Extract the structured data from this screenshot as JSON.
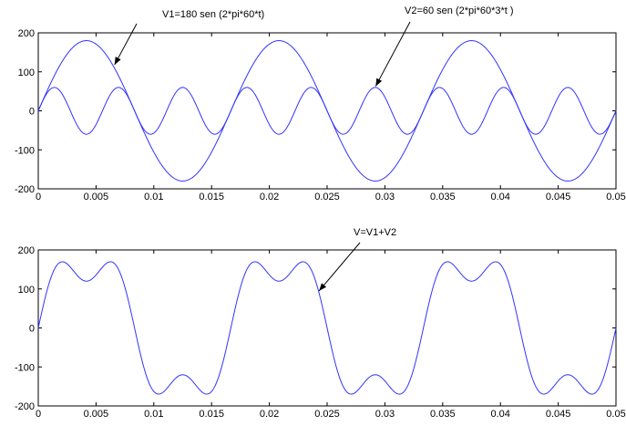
{
  "chart_data": [
    {
      "type": "line",
      "title": "",
      "xlabel": "",
      "ylabel": "",
      "xlim": [
        0,
        0.05
      ],
      "ylim": [
        -200,
        200
      ],
      "xticks": [
        "0",
        "0.005",
        "0.01",
        "0.015",
        "0.02",
        "0.025",
        "0.03",
        "0.035",
        "0.04",
        "0.045",
        "0.05"
      ],
      "yticks": [
        "200",
        "100",
        "0",
        "-100",
        "-200"
      ],
      "grid": false,
      "line_color": "#3333ff",
      "series": [
        {
          "formula": "180*sin(2*pi*60*t)",
          "amplitude": 180,
          "frequency_hz": 60
        },
        {
          "formula": "60*sin(2*pi*60*3*t)",
          "amplitude": 60,
          "frequency_hz": 180
        }
      ],
      "annotations": [
        {
          "text": "V1=180 sen (2*pi*60*t)",
          "target": [
            0.0066,
            118
          ]
        },
        {
          "text": "V2=60 sen (2*pi*60*3*t )",
          "target": [
            0.0292,
            63
          ]
        }
      ]
    },
    {
      "type": "line",
      "title": "",
      "xlabel": "",
      "ylabel": "",
      "xlim": [
        0,
        0.05
      ],
      "ylim": [
        -200,
        200
      ],
      "xticks": [
        "0",
        "0.005",
        "0.01",
        "0.015",
        "0.02",
        "0.025",
        "0.03",
        "0.035",
        "0.04",
        "0.045",
        "0.05"
      ],
      "yticks": [
        "200",
        "100",
        "0",
        "-100",
        "-200"
      ],
      "grid": false,
      "line_color": "#3333ff",
      "series": [
        {
          "formula": "180*sin(2*pi*60*t) + 60*sin(2*pi*60*3*t)",
          "components": [
            {
              "amplitude": 180,
              "frequency_hz": 60
            },
            {
              "amplitude": 60,
              "frequency_hz": 180
            }
          ]
        }
      ],
      "annotations": [
        {
          "text": "V=V1+V2",
          "target": [
            0.0243,
            95
          ]
        }
      ]
    }
  ]
}
